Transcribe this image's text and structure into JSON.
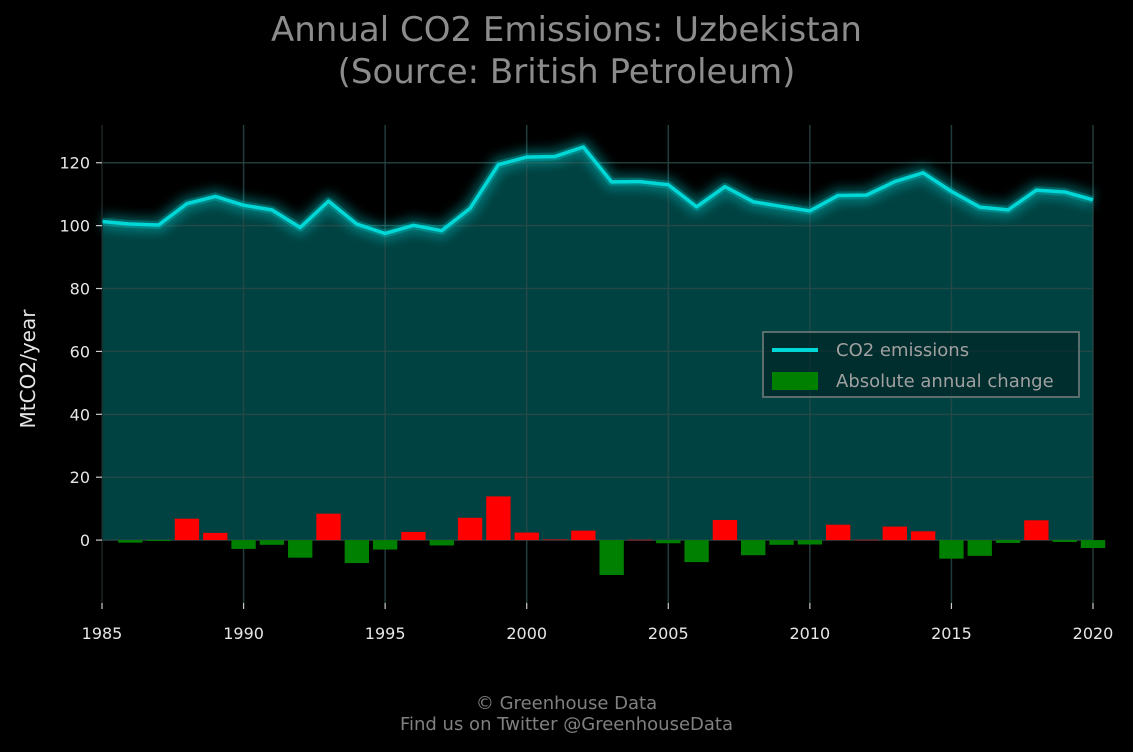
{
  "title_line1": "Annual CO2 Emissions: Uzbekistan",
  "title_line2": "(Source: British Petroleum)",
  "credit_line1": "© Greenhouse Data",
  "credit_line2": "Find us on Twitter @GreenhouseData",
  "colors": {
    "background": "#000000",
    "line": "#00d8d8",
    "area": "#004444",
    "increase": "#ff0000",
    "decrease": "#008000",
    "grid": "#2a4a4a"
  },
  "chart_data": {
    "type": "line",
    "title": "Annual CO2 Emissions: Uzbekistan",
    "subtitle": "(Source: British Petroleum)",
    "xlabel": "",
    "ylabel": "MtCO2/year",
    "xlim": [
      1985,
      2020
    ],
    "ylim": [
      -20,
      132
    ],
    "xticks": [
      1985,
      1990,
      1995,
      2000,
      2005,
      2010,
      2015,
      2020
    ],
    "yticks": [
      0,
      20,
      40,
      60,
      80,
      100,
      120
    ],
    "grid": true,
    "legend_position": "center-right",
    "x": [
      1985,
      1986,
      1987,
      1988,
      1989,
      1990,
      1991,
      1992,
      1993,
      1994,
      1995,
      1996,
      1997,
      1998,
      1999,
      2000,
      2001,
      2002,
      2003,
      2004,
      2005,
      2006,
      2007,
      2008,
      2009,
      2010,
      2011,
      2012,
      2013,
      2014,
      2015,
      2016,
      2017,
      2018,
      2019,
      2020
    ],
    "series": [
      {
        "name": "CO2 emissions",
        "type": "line",
        "values": [
          101.3,
          100.5,
          100.2,
          107.0,
          109.3,
          106.5,
          105.0,
          99.4,
          107.8,
          100.5,
          97.5,
          100.1,
          98.4,
          105.5,
          119.4,
          121.8,
          122.0,
          125.0,
          113.9,
          114.0,
          113.0,
          106.0,
          112.4,
          107.6,
          106.1,
          104.7,
          109.6,
          109.7,
          114.0,
          116.8,
          110.9,
          105.9,
          105.0,
          111.3,
          110.7,
          108.2
        ]
      },
      {
        "name": "Absolute annual change",
        "type": "bar",
        "values": [
          null,
          -0.8,
          -0.3,
          6.8,
          2.3,
          -2.8,
          -1.5,
          -5.6,
          8.4,
          -7.3,
          -3.0,
          2.6,
          -1.7,
          7.1,
          13.9,
          2.4,
          0.2,
          3.0,
          -11.1,
          0.1,
          -1.0,
          -7.0,
          6.4,
          -4.8,
          -1.5,
          -1.4,
          4.9,
          0.1,
          4.3,
          2.8,
          -5.9,
          -5.0,
          -0.9,
          6.3,
          -0.6,
          -2.5
        ]
      }
    ]
  }
}
